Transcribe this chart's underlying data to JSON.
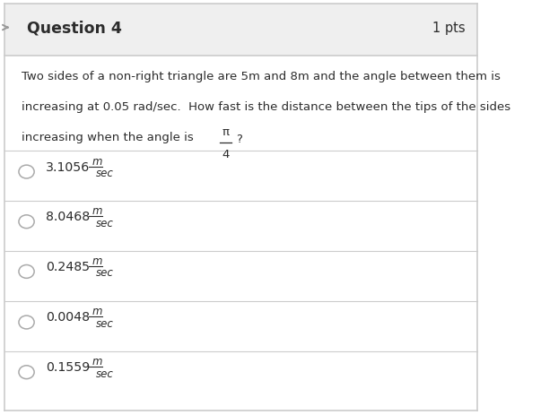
{
  "bg_color": "#ffffff",
  "header_bg": "#efefef",
  "header_text": "Question 4",
  "header_pts": "1 pts",
  "header_fontsize": 12.5,
  "question_text_line1": "Two sides of a non-right triangle are 5m and 8m and the angle between them is",
  "question_text_line2": "increasing at 0.05 rad/sec.  How fast is the distance between the tips of the sides",
  "question_text_line3": "increasing when the angle is",
  "fraction_num": "π",
  "fraction_den": "4",
  "question_mark": "?",
  "border_color": "#cccccc",
  "divider_color": "#cccccc",
  "text_color": "#2c2c2c",
  "circle_color": "#aaaaaa",
  "answer_color": "#2c2c2c",
  "options": [
    {
      "value": "3.1056",
      "unit_num": "m",
      "unit_den": "sec"
    },
    {
      "value": "8.0468",
      "unit_num": "m",
      "unit_den": "sec"
    },
    {
      "value": "0.2485",
      "unit_num": "m",
      "unit_den": "sec"
    },
    {
      "value": "0.0048",
      "unit_num": "m",
      "unit_den": "sec"
    },
    {
      "value": "0.1559",
      "unit_num": "m",
      "unit_den": "sec"
    }
  ],
  "arrow_color": "#999999"
}
